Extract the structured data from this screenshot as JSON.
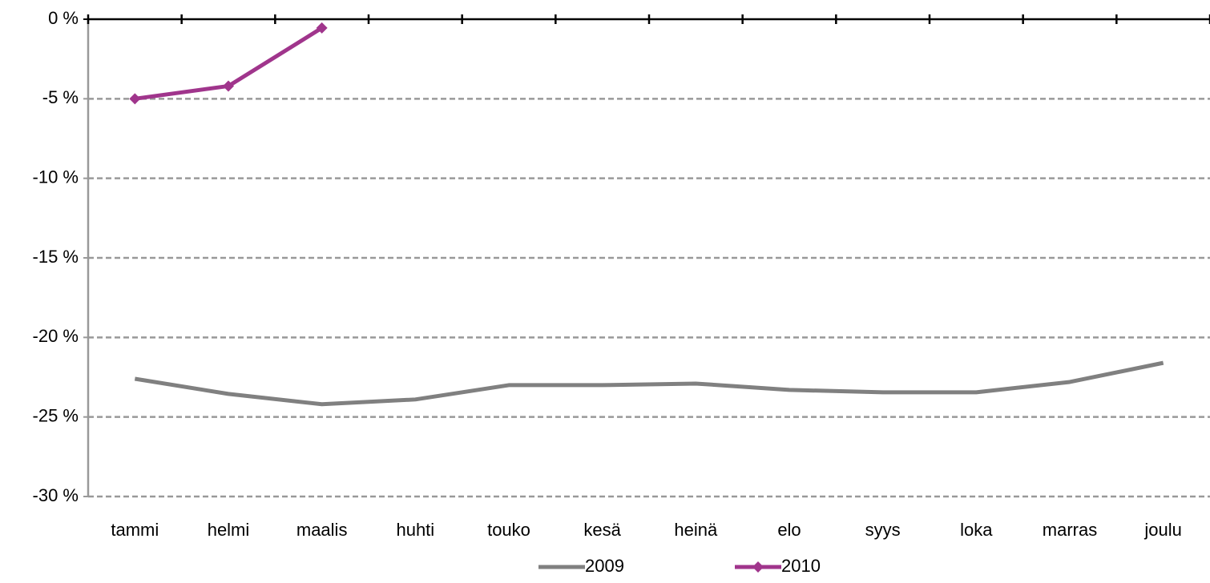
{
  "chart_data": {
    "type": "line",
    "categories": [
      "tammi",
      "helmi",
      "maalis",
      "huhti",
      "touko",
      "kesä",
      "heinä",
      "elo",
      "syys",
      "loka",
      "marras",
      "joulu"
    ],
    "series": [
      {
        "name": "2009",
        "color": "#808080",
        "values": [
          -22.6,
          -23.55,
          -24.2,
          -23.9,
          -23.0,
          -23.0,
          -22.9,
          -23.3,
          -23.45,
          -23.45,
          -22.8,
          -21.6
        ]
      },
      {
        "name": "2010",
        "color": "#a0358c",
        "marker": "diamond",
        "values": [
          -5.0,
          -4.2,
          -0.55,
          null,
          null,
          null,
          null,
          null,
          null,
          null,
          null,
          null
        ]
      }
    ],
    "ylim": [
      -30,
      0
    ],
    "yticks": [
      {
        "value": -30,
        "label": "-30 %"
      },
      {
        "value": -25,
        "label": "-25 %"
      },
      {
        "value": -20,
        "label": "-20 %"
      },
      {
        "value": -15,
        "label": "-15 %"
      },
      {
        "value": -10,
        "label": "-10 %"
      },
      {
        "value": -5,
        "label": "-5 %"
      },
      {
        "value": 0,
        "label": "0 %"
      }
    ],
    "grid": true,
    "legend": "bottom"
  }
}
